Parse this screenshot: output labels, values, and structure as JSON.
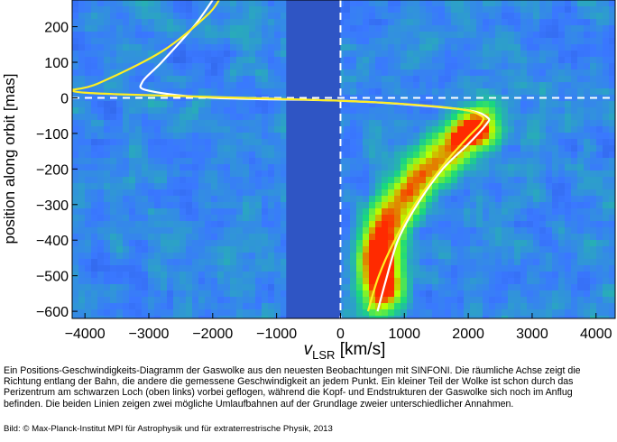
{
  "chart_data": {
    "type": "heatmap",
    "title": "",
    "xlabel_main": "v",
    "xlabel_sub": "LSR",
    "xlabel_unit": " [km/s]",
    "ylabel": "position along orbit [mas]",
    "xlim": [
      -4200,
      4300
    ],
    "ylim": [
      -620,
      275
    ],
    "xticks": [
      -4000,
      -3000,
      -2000,
      -1000,
      0,
      1000,
      2000,
      3000,
      4000
    ],
    "xtick_labels": [
      "−4000",
      "−3000",
      "−2000",
      "−1000",
      "0",
      "1000",
      "2000",
      "3000",
      "4000"
    ],
    "yticks": [
      200,
      100,
      0,
      -100,
      -200,
      -300,
      -400,
      -500,
      -600
    ],
    "ytick_labels": [
      "200",
      "100",
      "0",
      "−100",
      "−200",
      "−300",
      "−400",
      "−500",
      "−600"
    ],
    "reference_lines": {
      "vertical_dashed_at_x": 0,
      "horizontal_dashed_at_y": 0
    },
    "masked_region": {
      "x": [
        -850,
        0
      ],
      "y": [
        -620,
        275
      ]
    },
    "colormap": [
      "#1e3fb8",
      "#3a78ff",
      "#19d97c",
      "#b9ff00",
      "#ff2a00"
    ],
    "emission_ridge": [
      {
        "x": 650,
        "y": -540
      },
      {
        "x": 620,
        "y": -500
      },
      {
        "x": 600,
        "y": -460
      },
      {
        "x": 620,
        "y": -420
      },
      {
        "x": 700,
        "y": -380
      },
      {
        "x": 820,
        "y": -330
      },
      {
        "x": 1000,
        "y": -280
      },
      {
        "x": 1250,
        "y": -220
      },
      {
        "x": 1550,
        "y": -170
      },
      {
        "x": 1850,
        "y": -130
      },
      {
        "x": 2050,
        "y": -100
      },
      {
        "x": 2150,
        "y": -75
      }
    ],
    "series": [
      {
        "color": "#ffffff",
        "points": [
          {
            "x": 580,
            "y": -600
          },
          {
            "x": 700,
            "y": -520
          },
          {
            "x": 900,
            "y": -400
          },
          {
            "x": 1200,
            "y": -300
          },
          {
            "x": 1600,
            "y": -200
          },
          {
            "x": 2000,
            "y": -130
          },
          {
            "x": 2280,
            "y": -75
          },
          {
            "x": 2300,
            "y": -55
          },
          {
            "x": 2000,
            "y": -35
          },
          {
            "x": 1000,
            "y": -18
          },
          {
            "x": 0,
            "y": -8
          },
          {
            "x": -2000,
            "y": 0
          },
          {
            "x": -3000,
            "y": 20
          },
          {
            "x": -3100,
            "y": 45
          },
          {
            "x": -2800,
            "y": 100
          },
          {
            "x": -2300,
            "y": 200
          },
          {
            "x": -2000,
            "y": 275
          }
        ]
      },
      {
        "color": "#ffee22",
        "points": [
          {
            "x": 430,
            "y": -600
          },
          {
            "x": 600,
            "y": -500
          },
          {
            "x": 850,
            "y": -400
          },
          {
            "x": 1200,
            "y": -290
          },
          {
            "x": 1650,
            "y": -180
          },
          {
            "x": 2000,
            "y": -110
          },
          {
            "x": 2200,
            "y": -72
          },
          {
            "x": 2200,
            "y": -50
          },
          {
            "x": 1800,
            "y": -30
          },
          {
            "x": 500,
            "y": -12
          },
          {
            "x": -1500,
            "y": 0
          },
          {
            "x": -3500,
            "y": 10
          },
          {
            "x": -4200,
            "y": 20
          },
          {
            "x": -3800,
            "y": 40
          },
          {
            "x": -2800,
            "y": 130
          },
          {
            "x": -2100,
            "y": 230
          },
          {
            "x": -1900,
            "y": 275
          }
        ]
      }
    ]
  },
  "caption": "Ein Positions-Geschwindigkeits-Diagramm der Gaswolke aus den neuesten Beobachtungen mit SINFONI. Die räumliche Achse zeigt die Richtung entlang der Bahn, die andere die gemessene Geschwindigkeit an jedem Punkt. Ein kleiner Teil der Wolke ist schon durch das Perizentrum am schwarzen Loch (oben links) vorbei geflogen, während die Kopf- und Endstrukturen der Gaswolke sich noch im Anflug befinden. Die beiden Linien zeigen zwei mögliche Umlaufbahnen auf der Grundlage zweier unterschiedlicher Annahmen.",
  "credit": "Bild: © Max-Planck-Institut MPI für Astrophysik und für extraterrestrische Physik, 2013"
}
